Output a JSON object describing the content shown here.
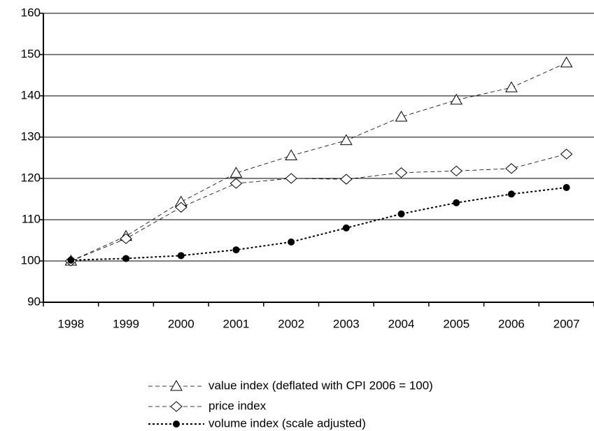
{
  "chart_data": {
    "type": "line",
    "categories": [
      "1998",
      "1999",
      "2000",
      "2001",
      "2002",
      "2003",
      "2004",
      "2005",
      "2006",
      "2007"
    ],
    "series": [
      {
        "name": "value index (deflated with CPI 2006 = 100)",
        "color": "#000000",
        "marker": "triangle",
        "dash": "dashed",
        "values": [
          100,
          106,
          114.3,
          121.3,
          125.5,
          129.2,
          134.9,
          139,
          142,
          148
        ]
      },
      {
        "name": "price index",
        "color": "#000000",
        "marker": "diamond",
        "dash": "dashed",
        "values": [
          100,
          105.4,
          113,
          118.8,
          120,
          119.8,
          121.4,
          121.8,
          122.4,
          125.9
        ]
      },
      {
        "name": "volume index (scale adjusted)",
        "color": "#000000",
        "marker": "dot",
        "dash": "dotted",
        "values": [
          100.2,
          100.6,
          101.3,
          102.7,
          104.6,
          108,
          111.4,
          114.1,
          116.2,
          117.8
        ]
      }
    ],
    "ylim": [
      90,
      160
    ],
    "yticks": [
      90,
      100,
      110,
      120,
      130,
      140,
      150,
      160
    ],
    "grid": true,
    "legend": "bottom"
  }
}
